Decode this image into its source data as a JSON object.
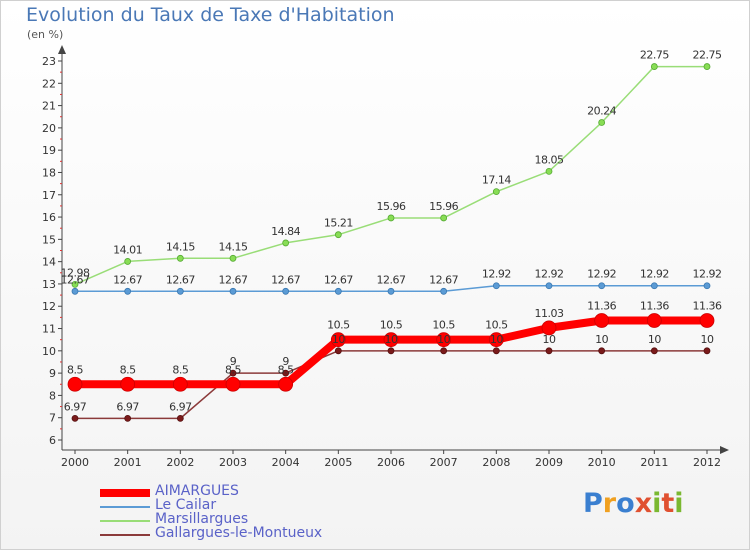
{
  "title": "Evolution du Taux de Taxe d'Habitation",
  "unit_label": "(en %)",
  "logo": {
    "text": "Proxiti",
    "letters": [
      {
        "ch": "P",
        "color": "#3a7fd0"
      },
      {
        "ch": "r",
        "color": "#f0a020"
      },
      {
        "ch": "o",
        "color": "#3a7fd0"
      },
      {
        "ch": "x",
        "color": "#e05030"
      },
      {
        "ch": "i",
        "color": "#7ab830"
      },
      {
        "ch": "t",
        "color": "#e05030"
      },
      {
        "ch": "i",
        "color": "#7ab830"
      }
    ]
  },
  "chart_data": {
    "type": "line",
    "title": "Evolution du Taux de Taxe d'Habitation",
    "ylabel": "(en %)",
    "xlabel": "",
    "x": [
      "2000",
      "2001",
      "2002",
      "2003",
      "2004",
      "2005",
      "2006",
      "2007",
      "2008",
      "2009",
      "2010",
      "2011",
      "2012"
    ],
    "ylim": [
      6,
      23
    ],
    "yticks": [
      6,
      7,
      8,
      9,
      10,
      11,
      12,
      13,
      14,
      15,
      16,
      17,
      18,
      19,
      20,
      21,
      22,
      23
    ],
    "grid": false,
    "legend_position": "bottom",
    "series": [
      {
        "name": "AIMARGUES",
        "color": "#ff0000",
        "values": [
          8.5,
          8.5,
          8.5,
          8.5,
          8.5,
          10.5,
          10.5,
          10.5,
          10.5,
          11.03,
          11.36,
          11.36,
          11.36
        ],
        "labels": [
          "8.5",
          "8.5",
          "8.5",
          "8.5",
          "8.5",
          "10.5",
          "10.5",
          "10.5",
          "10.5",
          "11.03",
          "11.36",
          "11.36",
          "11.36"
        ]
      },
      {
        "name": "Le Cailar",
        "color": "#5b9bd5",
        "values": [
          12.67,
          12.67,
          12.67,
          12.67,
          12.67,
          12.67,
          12.67,
          12.67,
          12.92,
          12.92,
          12.92,
          12.92,
          12.92
        ],
        "labels": [
          "12.67",
          "12.67",
          "12.67",
          "12.67",
          "12.67",
          "12.67",
          "12.67",
          "12.67",
          "12.92",
          "12.92",
          "12.92",
          "12.92",
          "12.92"
        ]
      },
      {
        "name": "Marsillargues",
        "color": "#99dd77",
        "values": [
          12.98,
          14.01,
          14.15,
          14.15,
          14.84,
          15.21,
          15.96,
          15.96,
          17.14,
          18.05,
          20.24,
          22.75,
          22.75
        ],
        "labels": [
          "12.98",
          "14.01",
          "14.15",
          "14.15",
          "14.84",
          "15.21",
          "15.96",
          "15.96",
          "17.14",
          "18.05",
          "20.24",
          "22.75",
          "22.75"
        ]
      },
      {
        "name": "Gallargues-le-Montueux",
        "color": "#8b3a3a",
        "values": [
          6.97,
          6.97,
          6.97,
          9,
          9,
          10,
          10,
          10,
          10,
          10,
          10,
          10,
          10
        ],
        "labels": [
          "6.97",
          "6.97",
          "6.97",
          "9",
          "9",
          "10",
          "10",
          "10",
          "10",
          "10",
          "10",
          "10",
          "10"
        ]
      }
    ]
  }
}
